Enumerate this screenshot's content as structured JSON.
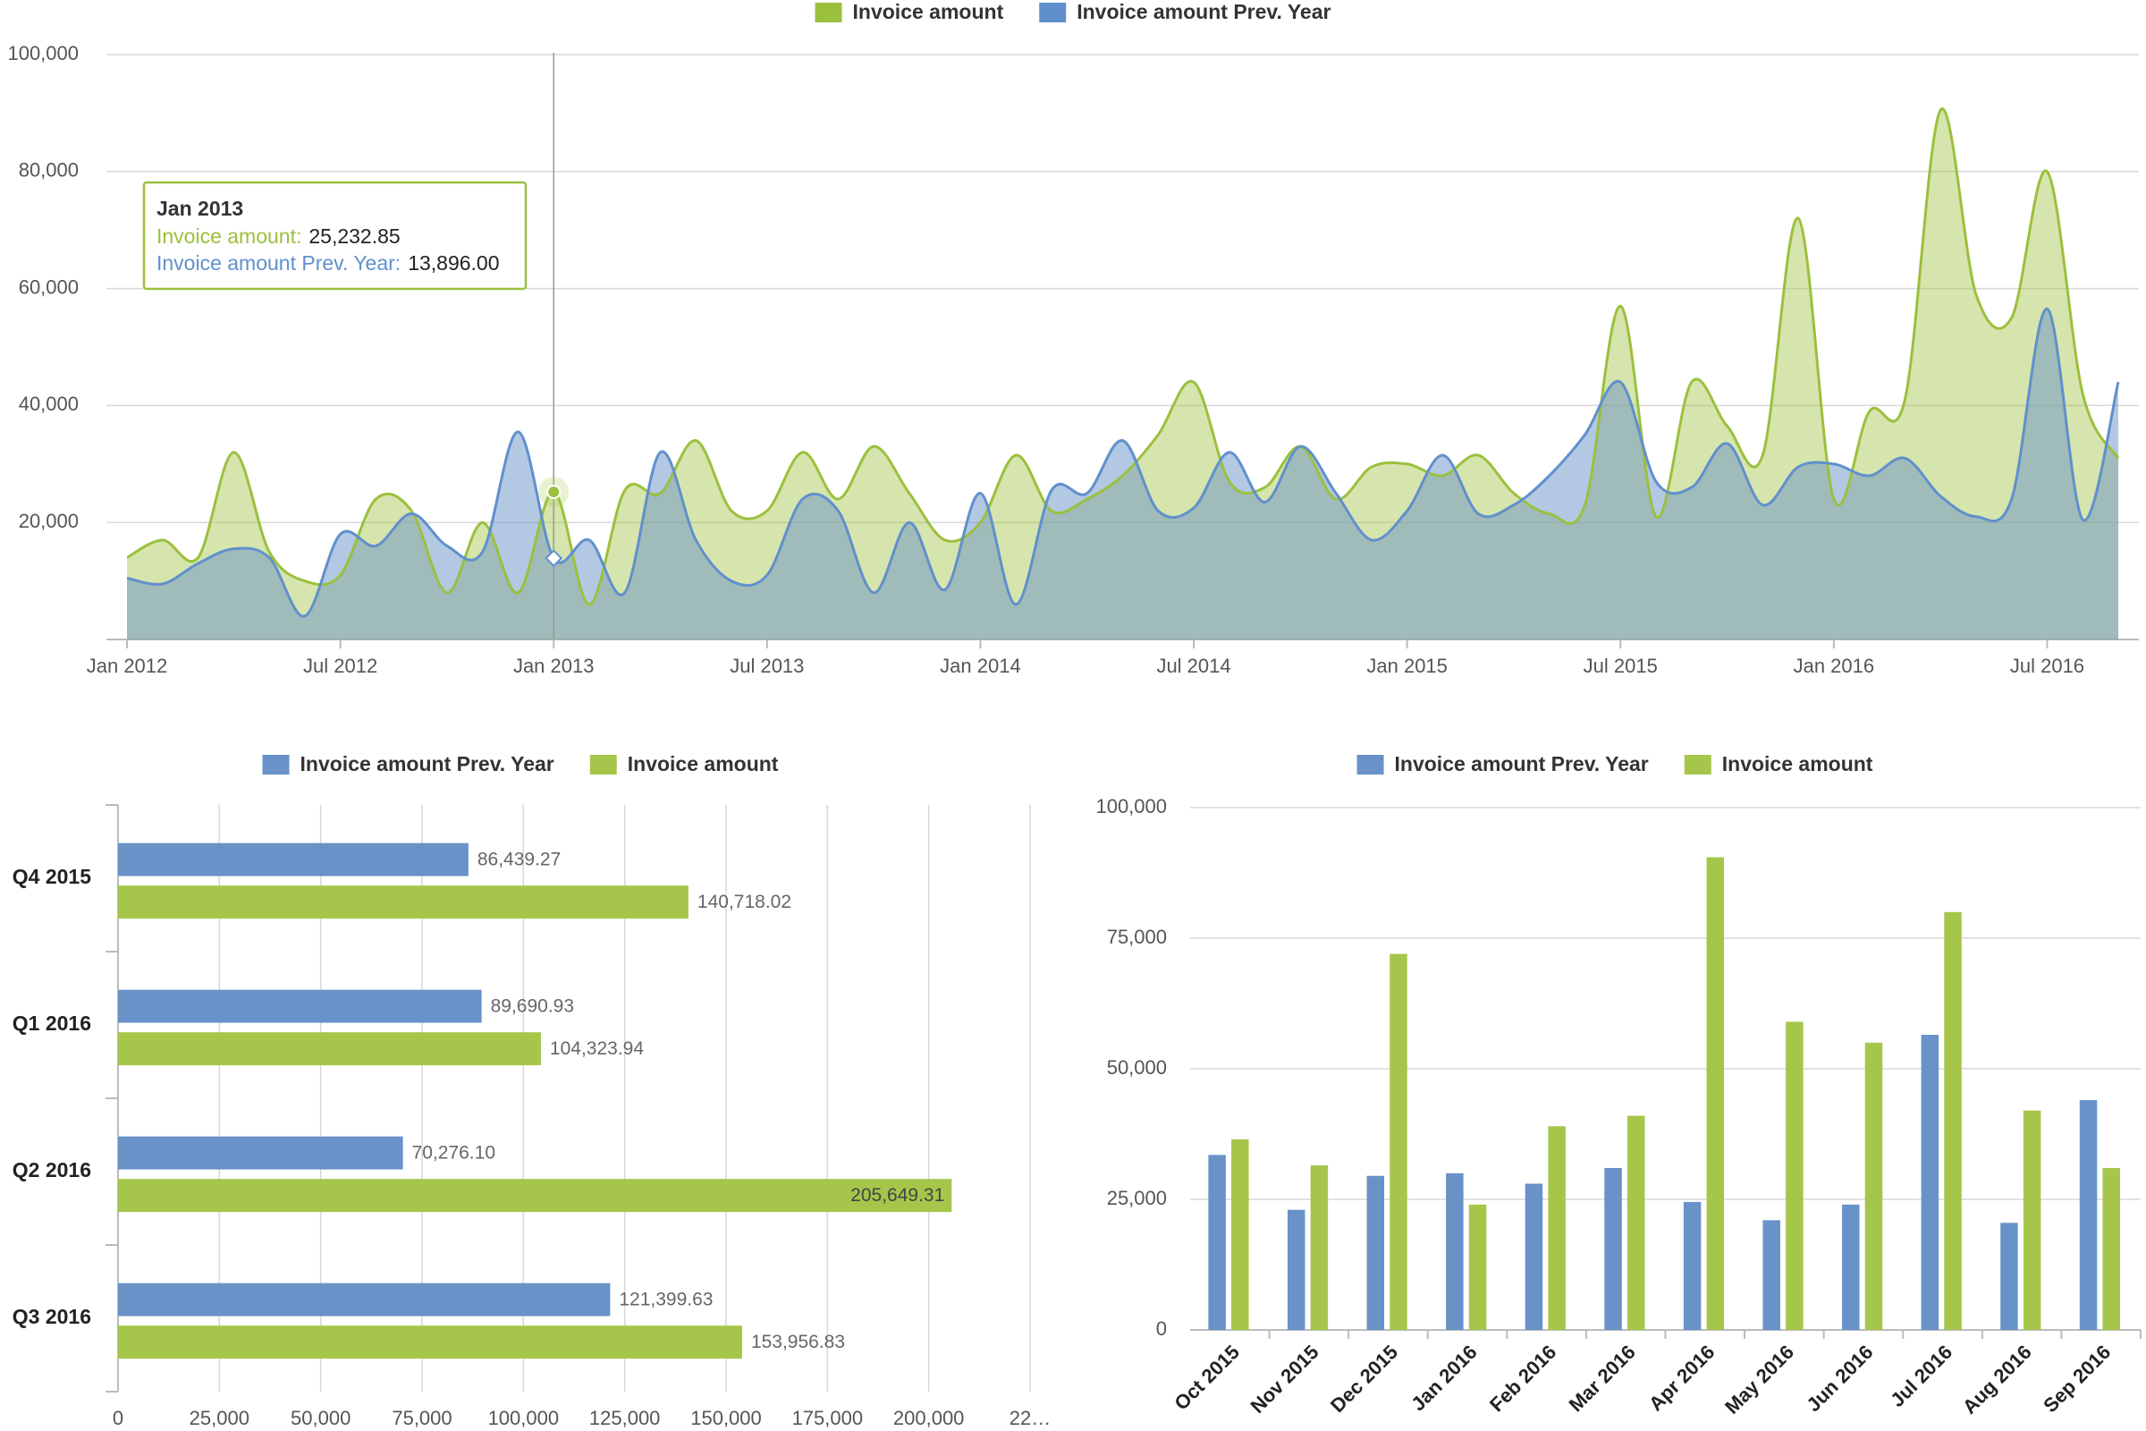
{
  "chart_data": [
    {
      "type": "area",
      "categories": [
        "Jan 2012",
        null,
        null,
        null,
        null,
        null,
        "Jul 2012",
        null,
        null,
        null,
        null,
        null,
        "Jan 2013",
        null,
        null,
        null,
        null,
        null,
        "Jul 2013",
        null,
        null,
        null,
        null,
        null,
        "Jan 2014",
        null,
        null,
        null,
        null,
        null,
        "Jul 2014",
        null,
        null,
        null,
        null,
        null,
        "Jan 2015",
        null,
        null,
        null,
        null,
        null,
        "Jul 2015",
        null,
        null,
        null,
        null,
        null,
        "Jan 2016",
        null,
        null,
        null,
        null,
        null,
        "Jul 2016",
        null,
        null
      ],
      "series": [
        {
          "name": "Invoice amount",
          "color": "#9bc03e",
          "values": [
            14000,
            17000,
            14000,
            32000,
            15000,
            10000,
            11000,
            24000,
            22000,
            8000,
            20000,
            8000,
            25232.85,
            6000,
            25500,
            25000,
            34000,
            22000,
            22000,
            32000,
            24000,
            33000,
            25000,
            17000,
            20000,
            31500,
            22000,
            24000,
            28000,
            35000,
            44000,
            27000,
            26000,
            33000,
            24000,
            29500,
            30000,
            28000,
            31500,
            25000,
            21500,
            23000,
            57000,
            21000,
            44000,
            36500,
            31500,
            72000,
            24000,
            39000,
            41000,
            90500,
            59000,
            55000,
            80000,
            42000,
            31000
          ]
        },
        {
          "name": "Invoice amount Prev. Year",
          "color": "#6090cc",
          "values": [
            10500,
            9500,
            13000,
            15500,
            14000,
            4000,
            18000,
            16000,
            21500,
            16000,
            15000,
            35500,
            13896,
            17000,
            8000,
            32000,
            17000,
            10000,
            11000,
            24000,
            22000,
            8000,
            20000,
            8500,
            25000,
            6000,
            25500,
            25000,
            34000,
            22000,
            22500,
            32000,
            23500,
            33000,
            25000,
            17000,
            22000,
            31500,
            21500,
            23000,
            28000,
            35000,
            44000,
            27000,
            26000,
            33500,
            23000,
            29500,
            30000,
            28000,
            31000,
            24500,
            21000,
            24000,
            56500,
            20500,
            44000
          ]
        }
      ],
      "ylim": [
        0,
        100000
      ],
      "yticks": [
        {
          "value": 20000,
          "label": "20,000"
        },
        {
          "value": 40000,
          "label": "40,000"
        },
        {
          "value": 60000,
          "label": "60,000"
        },
        {
          "value": 80000,
          "label": "80,000"
        },
        {
          "value": 100000,
          "label": "100,000"
        }
      ],
      "grid": true,
      "legend": "top",
      "tooltip": {
        "title": "Jan 2013",
        "rows": [
          {
            "label": "Invoice amount:",
            "value": "25,232.85"
          },
          {
            "label": "Invoice amount Prev. Year:",
            "value": "13,896.00"
          }
        ]
      }
    },
    {
      "type": "bar",
      "orientation": "horizontal",
      "categories": [
        "Q4 2015",
        "Q1 2016",
        "Q2 2016",
        "Q3 2016"
      ],
      "series": [
        {
          "name": "Invoice amount Prev. Year",
          "color": "#6892c8",
          "values": [
            86439.27,
            89690.93,
            70276.1,
            121399.63
          ],
          "value_labels": [
            "86,439.27",
            "89,690.93",
            "70,276.10",
            "121,399.63"
          ]
        },
        {
          "name": "Invoice amount",
          "color": "#a5c64a",
          "values": [
            140718.02,
            104323.94,
            205649.31,
            153956.83
          ],
          "value_labels": [
            "140,718.02",
            "104,323.94",
            "205,649.31",
            "153,956.83"
          ]
        }
      ],
      "xlim": [
        0,
        225000
      ],
      "xticks": [
        0,
        {
          "value": 25000,
          "label": "25,000"
        },
        {
          "value": 50000,
          "label": "50,000"
        },
        {
          "value": 75000,
          "label": "75,000"
        },
        {
          "value": 100000,
          "label": "100,000"
        },
        {
          "value": 125000,
          "label": "125,000"
        },
        {
          "value": 150000,
          "label": "150,000"
        },
        {
          "value": 175000,
          "label": "175,000"
        },
        {
          "value": 200000,
          "label": "200,000"
        },
        {
          "value": 225000,
          "label": "22…"
        }
      ],
      "grid": true,
      "legend": "top"
    },
    {
      "type": "bar",
      "orientation": "vertical",
      "categories": [
        "Oct 2015",
        "Nov 2015",
        "Dec 2015",
        "Jan 2016",
        "Feb 2016",
        "Mar 2016",
        "Apr 2016",
        "May 2016",
        "Jun 2016",
        "Jul 2016",
        "Aug 2016",
        "Sep 2016"
      ],
      "series": [
        {
          "name": "Invoice amount Prev. Year",
          "color": "#6892c8",
          "values": [
            33500,
            23000,
            29500,
            30000,
            28000,
            31000,
            24500,
            21000,
            24000,
            56500,
            20500,
            44000
          ]
        },
        {
          "name": "Invoice amount",
          "color": "#a5c64a",
          "values": [
            36500,
            31500,
            72000,
            24000,
            39000,
            41000,
            90500,
            59000,
            55000,
            80000,
            42000,
            31000
          ]
        }
      ],
      "ylim": [
        0,
        100000
      ],
      "yticks": [
        0,
        {
          "value": 25000,
          "label": "25,000"
        },
        {
          "value": 50000,
          "label": "50,000"
        },
        {
          "value": 75000,
          "label": "75,000"
        },
        {
          "value": 100000,
          "label": "100,000"
        }
      ],
      "grid": true,
      "legend": "top"
    }
  ]
}
